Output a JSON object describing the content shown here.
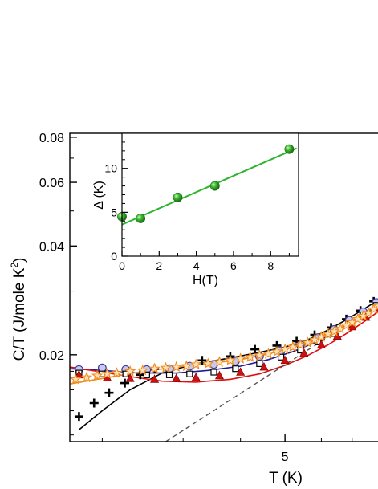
{
  "chart_data": [
    {
      "type": "scatter",
      "xlabel": "T (K)",
      "ylabel_main": "C/T (J/mole K",
      "ylabel_sup": "2",
      "ylabel_close": ")",
      "x_scale": "log",
      "y_scale": "log",
      "xlim": [
        1.7,
        8.5
      ],
      "ylim": [
        0.0115,
        0.082
      ],
      "x_ticks": [
        {
          "value": 5,
          "label": "5"
        }
      ],
      "y_ticks": [
        {
          "value": 0.02,
          "label": "0.02"
        },
        {
          "value": 0.04,
          "label": "0.04"
        },
        {
          "value": 0.06,
          "label": "0.06"
        },
        {
          "value": 0.08,
          "label": "0.08"
        }
      ],
      "grid": false,
      "series": [
        {
          "marker": "plus",
          "color": "#000000",
          "points": [
            [
              1.78,
              0.0135
            ],
            [
              1.92,
              0.0147
            ],
            [
              2.07,
              0.0157
            ],
            [
              2.24,
              0.0167
            ],
            [
              2.42,
              0.0176
            ],
            [
              2.6,
              0.0183
            ],
            [
              3.3,
              0.0193
            ],
            [
              3.8,
              0.0198
            ],
            [
              4.3,
              0.0207
            ],
            [
              4.8,
              0.0212
            ],
            [
              5.3,
              0.0218
            ],
            [
              5.8,
              0.0227
            ],
            [
              6.3,
              0.0238
            ],
            [
              6.8,
              0.0251
            ],
            [
              7.3,
              0.0265
            ],
            [
              7.8,
              0.0281
            ],
            [
              8.3,
              0.0298
            ]
          ]
        },
        {
          "marker": "circle-open",
          "color": "#3a3aa0",
          "fill": "#c8c8f0",
          "points": [
            [
              1.78,
              0.0182
            ],
            [
              2.0,
              0.0184
            ],
            [
              2.25,
              0.0182
            ],
            [
              2.5,
              0.0182
            ],
            [
              2.8,
              0.0183
            ],
            [
              3.1,
              0.0186
            ],
            [
              3.5,
              0.0188
            ],
            [
              3.9,
              0.0192
            ],
            [
              4.4,
              0.0198
            ],
            [
              4.9,
              0.0205
            ],
            [
              5.4,
              0.0213
            ],
            [
              5.9,
              0.0223
            ],
            [
              6.4,
              0.0235
            ],
            [
              6.9,
              0.0249
            ],
            [
              7.4,
              0.0263
            ],
            [
              7.9,
              0.0279
            ],
            [
              8.4,
              0.0296
            ]
          ]
        },
        {
          "marker": "square-open",
          "color": "#000000",
          "points": [
            [
              1.78,
              0.0178
            ],
            [
              2.0,
              0.0177
            ],
            [
              2.25,
              0.0177
            ],
            [
              2.5,
              0.0176
            ],
            [
              2.8,
              0.0176
            ],
            [
              3.1,
              0.0177
            ],
            [
              3.5,
              0.0179
            ],
            [
              3.9,
              0.0183
            ],
            [
              4.4,
              0.0189
            ],
            [
              4.9,
              0.0197
            ],
            [
              5.4,
              0.0206
            ],
            [
              5.9,
              0.0217
            ],
            [
              6.4,
              0.0229
            ],
            [
              6.9,
              0.0243
            ],
            [
              7.4,
              0.0258
            ],
            [
              7.9,
              0.0274
            ],
            [
              8.4,
              0.0292
            ]
          ]
        },
        {
          "marker": "triangle",
          "color": "#cc1111",
          "points": [
            [
              1.78,
              0.0176
            ],
            [
              2.05,
              0.0173
            ],
            [
              2.3,
              0.0172
            ],
            [
              2.6,
              0.0171
            ],
            [
              2.9,
              0.0172
            ],
            [
              3.2,
              0.0173
            ],
            [
              3.6,
              0.0175
            ],
            [
              4.0,
              0.0179
            ],
            [
              4.5,
              0.0185
            ],
            [
              5.0,
              0.0193
            ],
            [
              5.5,
              0.0202
            ],
            [
              6.0,
              0.0213
            ],
            [
              6.5,
              0.0225
            ],
            [
              7.0,
              0.0239
            ],
            [
              7.5,
              0.0254
            ],
            [
              8.0,
              0.027
            ],
            [
              8.45,
              0.0286
            ]
          ]
        },
        {
          "marker": "star-open",
          "color": "#f08a1c",
          "points": [
            [
              1.75,
              0.0171
            ],
            [
              1.85,
              0.0173
            ],
            [
              1.95,
              0.0175
            ],
            [
              2.05,
              0.0177
            ],
            [
              2.15,
              0.0178
            ],
            [
              2.3,
              0.018
            ],
            [
              2.45,
              0.0181
            ],
            [
              2.6,
              0.0183
            ],
            [
              2.75,
              0.0184
            ],
            [
              2.9,
              0.0185
            ],
            [
              3.05,
              0.0186
            ],
            [
              3.2,
              0.0188
            ],
            [
              3.4,
              0.0189
            ],
            [
              3.6,
              0.0191
            ],
            [
              3.8,
              0.0193
            ],
            [
              4.0,
              0.0195
            ],
            [
              4.2,
              0.0197
            ],
            [
              4.4,
              0.0199
            ],
            [
              4.6,
              0.0201
            ],
            [
              4.8,
              0.0204
            ],
            [
              5.0,
              0.0207
            ],
            [
              5.2,
              0.021
            ],
            [
              5.4,
              0.0213
            ],
            [
              5.6,
              0.0216
            ],
            [
              5.8,
              0.022
            ],
            [
              6.0,
              0.0224
            ],
            [
              6.2,
              0.0228
            ],
            [
              6.4,
              0.0232
            ],
            [
              6.6,
              0.0236
            ],
            [
              6.8,
              0.0241
            ],
            [
              7.0,
              0.0246
            ],
            [
              7.2,
              0.0251
            ],
            [
              7.4,
              0.0256
            ],
            [
              7.6,
              0.0261
            ],
            [
              7.8,
              0.0267
            ],
            [
              8.0,
              0.0273
            ],
            [
              8.2,
              0.0279
            ],
            [
              8.4,
              0.0286
            ]
          ]
        }
      ],
      "fit_lines": [
        {
          "color": "#000000",
          "points": [
            [
              1.78,
              0.0124
            ],
            [
              2.0,
              0.014
            ],
            [
              2.3,
              0.016
            ],
            [
              2.7,
              0.0178
            ],
            [
              3.2,
              0.0189
            ],
            [
              3.8,
              0.0196
            ],
            [
              4.4,
              0.0203
            ],
            [
              5.0,
              0.021
            ],
            [
              5.6,
              0.022
            ],
            [
              6.2,
              0.0234
            ],
            [
              6.8,
              0.025
            ],
            [
              7.4,
              0.0267
            ],
            [
              8.0,
              0.0284
            ],
            [
              8.5,
              0.0299
            ]
          ]
        },
        {
          "color": "#1a1a9a",
          "points": [
            [
              1.7,
              0.0183
            ],
            [
              2.0,
              0.0181
            ],
            [
              2.4,
              0.0178
            ],
            [
              2.9,
              0.0178
            ],
            [
              3.4,
              0.0181
            ],
            [
              4.0,
              0.0186
            ],
            [
              4.6,
              0.0194
            ],
            [
              5.2,
              0.0204
            ],
            [
              5.8,
              0.0216
            ],
            [
              6.4,
              0.023
            ],
            [
              7.0,
              0.0246
            ],
            [
              7.6,
              0.0263
            ],
            [
              8.2,
              0.0281
            ],
            [
              8.5,
              0.029
            ]
          ]
        },
        {
          "color": "#dd1111",
          "points": [
            [
              1.7,
              0.0185
            ],
            [
              1.95,
              0.018
            ],
            [
              2.3,
              0.0174
            ],
            [
              2.7,
              0.0169
            ],
            [
              3.2,
              0.0168
            ],
            [
              3.8,
              0.0171
            ],
            [
              4.4,
              0.0177
            ],
            [
              5.0,
              0.0187
            ],
            [
              5.6,
              0.0199
            ],
            [
              6.2,
              0.0213
            ],
            [
              6.8,
              0.0229
            ],
            [
              7.4,
              0.0246
            ],
            [
              8.0,
              0.0264
            ],
            [
              8.5,
              0.0281
            ]
          ]
        },
        {
          "color": "#f08a1c",
          "points": [
            [
              1.7,
              0.0166
            ],
            [
              2.0,
              0.0172
            ],
            [
              2.4,
              0.0179
            ],
            [
              2.9,
              0.0185
            ],
            [
              3.4,
              0.0189
            ],
            [
              4.0,
              0.0194
            ],
            [
              4.6,
              0.0201
            ],
            [
              5.2,
              0.021
            ],
            [
              5.8,
              0.0221
            ],
            [
              6.4,
              0.0234
            ],
            [
              7.0,
              0.0248
            ],
            [
              7.6,
              0.0264
            ],
            [
              8.2,
              0.0281
            ],
            [
              8.5,
              0.029
            ]
          ]
        }
      ],
      "dashed_line": {
        "color": "#555555",
        "points": [
          [
            2.75,
            0.0115
          ],
          [
            8.5,
            0.029
          ]
        ]
      }
    },
    {
      "type": "scatter",
      "xlabel": "H(T)",
      "ylabel": "Δ (K)",
      "xlim": [
        0,
        9.5
      ],
      "ylim": [
        0,
        14
      ],
      "x_ticks": [
        0,
        2,
        4,
        6,
        8
      ],
      "y_ticks": [
        0,
        5,
        10
      ],
      "series": [
        {
          "marker": "sphere",
          "color": "#3db82e",
          "points": [
            [
              0,
              4.5
            ],
            [
              1,
              4.3
            ],
            [
              3,
              6.7
            ],
            [
              5,
              8
            ],
            [
              9,
              12.2
            ]
          ]
        }
      ],
      "fit_line": {
        "color": "#2db52d",
        "points": [
          [
            0,
            3.6
          ],
          [
            9.4,
            12.3
          ]
        ]
      }
    }
  ]
}
